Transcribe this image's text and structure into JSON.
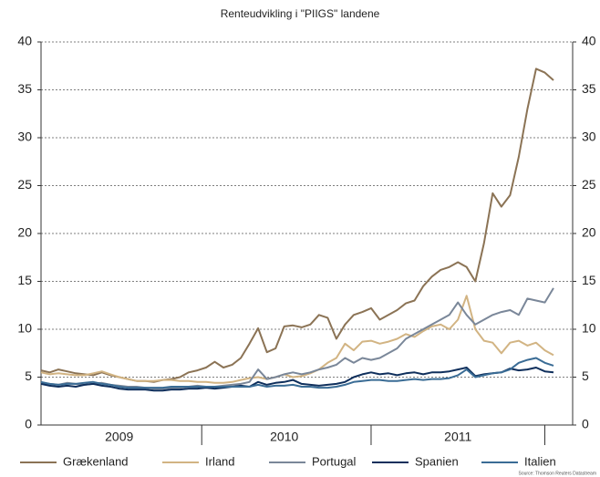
{
  "chart_data": {
    "type": "line",
    "title": "Renteudvikling i \"PIIGS\" landene",
    "source": "Source: Thomson Reuters Datastream",
    "categories": [
      null,
      null,
      null,
      null,
      null,
      null,
      null,
      null,
      null,
      "2009",
      null,
      null,
      null,
      null,
      null,
      null,
      null,
      null,
      null,
      null,
      null,
      null,
      null,
      null,
      null,
      null,
      null,
      null,
      "2010",
      null,
      null,
      null,
      null,
      null,
      null,
      null,
      null,
      null,
      null,
      null,
      null,
      null,
      null,
      null,
      null,
      null,
      null,
      null,
      "2011",
      null,
      null,
      null,
      null,
      null,
      null,
      null,
      null,
      null,
      null,
      null
    ],
    "ylim": [
      0,
      40
    ],
    "yticks": [
      0,
      5,
      10,
      15,
      20,
      25,
      30,
      35,
      40
    ],
    "y2lim": [
      0,
      40
    ],
    "y2ticks": [
      0,
      5,
      10,
      15,
      20,
      25,
      30,
      35,
      40
    ],
    "grid": true,
    "legend": "bottom",
    "series": [
      {
        "name": "Grækenland",
        "color": "#8b7355",
        "values": [
          5.7,
          5.5,
          5.8,
          5.6,
          5.4,
          5.3,
          5.2,
          5.5,
          5.2,
          5.0,
          4.8,
          4.6,
          4.6,
          4.5,
          4.7,
          4.8,
          5.0,
          5.5,
          5.7,
          6.0,
          6.6,
          6.0,
          6.3,
          7.0,
          8.5,
          10.1,
          7.6,
          8.0,
          10.3,
          10.4,
          10.2,
          10.5,
          11.5,
          11.2,
          9.0,
          10.5,
          11.5,
          11.8,
          12.2,
          11.0,
          11.5,
          12.0,
          12.7,
          13.0,
          14.5,
          15.5,
          16.2,
          16.5,
          17.0,
          16.5,
          15.0,
          19.0,
          24.2,
          22.8,
          24.0,
          28.0,
          33.0,
          37.2,
          36.8,
          36.0
        ]
      },
      {
        "name": "Irland",
        "color": "#d2b483",
        "values": [
          5.5,
          5.3,
          5.4,
          5.3,
          5.2,
          5.2,
          5.4,
          5.6,
          5.3,
          5.0,
          4.8,
          4.6,
          4.6,
          4.6,
          4.7,
          4.7,
          4.6,
          4.6,
          4.5,
          4.5,
          4.4,
          4.4,
          4.5,
          4.7,
          4.9,
          5.0,
          4.8,
          5.0,
          5.3,
          5.0,
          5.1,
          5.4,
          5.8,
          6.5,
          7.0,
          8.5,
          7.8,
          8.7,
          8.8,
          8.5,
          8.7,
          9.0,
          9.5,
          9.2,
          9.8,
          10.3,
          10.5,
          10.0,
          11.0,
          13.5,
          10.0,
          8.8,
          8.6,
          7.5,
          8.6,
          8.8,
          8.3,
          8.6,
          7.8,
          7.3
        ]
      },
      {
        "name": "Portugal",
        "color": "#7a8799",
        "values": [
          4.4,
          4.3,
          4.2,
          4.4,
          4.3,
          4.2,
          4.3,
          4.4,
          4.2,
          4.1,
          4.0,
          4.0,
          3.9,
          3.8,
          3.8,
          3.9,
          3.9,
          4.0,
          4.1,
          4.0,
          4.0,
          4.1,
          4.2,
          4.3,
          4.5,
          5.8,
          4.8,
          5.0,
          5.3,
          5.5,
          5.3,
          5.5,
          5.8,
          6.0,
          6.3,
          7.0,
          6.5,
          7.0,
          6.8,
          7.0,
          7.5,
          8.0,
          9.0,
          9.5,
          10.0,
          10.5,
          11.0,
          11.5,
          12.8,
          11.5,
          10.5,
          11.0,
          11.5,
          11.8,
          12.0,
          11.5,
          13.2,
          13.0,
          12.8,
          14.3
        ]
      },
      {
        "name": "Spanien",
        "color": "#0f2f5c",
        "values": [
          4.3,
          4.1,
          4.0,
          4.1,
          4.0,
          4.2,
          4.3,
          4.1,
          4.0,
          3.8,
          3.7,
          3.7,
          3.7,
          3.6,
          3.6,
          3.7,
          3.7,
          3.8,
          3.8,
          3.9,
          3.8,
          3.9,
          4.0,
          4.1,
          4.0,
          4.5,
          4.2,
          4.4,
          4.5,
          4.7,
          4.3,
          4.2,
          4.1,
          4.2,
          4.3,
          4.5,
          5.0,
          5.3,
          5.5,
          5.3,
          5.4,
          5.2,
          5.4,
          5.5,
          5.3,
          5.5,
          5.5,
          5.6,
          5.8,
          6.0,
          5.1,
          5.3,
          5.4,
          5.5,
          5.9,
          5.7,
          5.8,
          6.0,
          5.6,
          5.5
        ]
      },
      {
        "name": "Italien",
        "color": "#3a6c95",
        "values": [
          4.5,
          4.3,
          4.2,
          4.3,
          4.3,
          4.4,
          4.5,
          4.3,
          4.2,
          4.0,
          3.9,
          3.9,
          3.9,
          3.9,
          3.9,
          4.0,
          4.0,
          4.0,
          4.0,
          4.0,
          4.0,
          4.0,
          4.0,
          4.0,
          4.0,
          4.2,
          4.0,
          4.1,
          4.1,
          4.2,
          4.0,
          4.0,
          3.9,
          3.9,
          4.0,
          4.2,
          4.5,
          4.6,
          4.7,
          4.7,
          4.6,
          4.6,
          4.7,
          4.8,
          4.7,
          4.8,
          4.8,
          4.9,
          5.2,
          5.8,
          5.0,
          5.2,
          5.4,
          5.5,
          5.8,
          6.5,
          6.8,
          7.0,
          6.5,
          6.2
        ]
      }
    ]
  }
}
